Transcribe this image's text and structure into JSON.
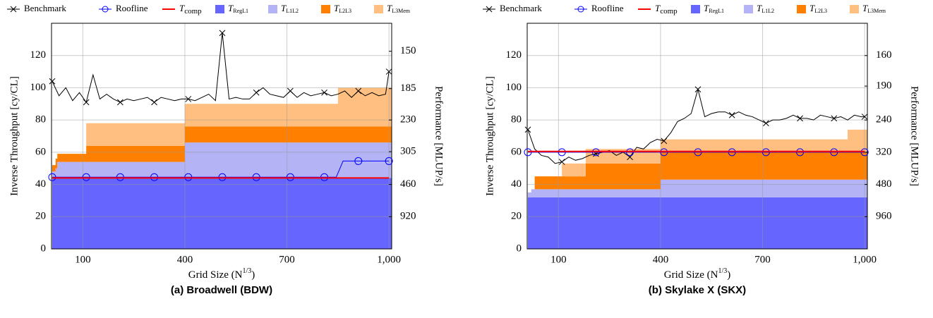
{
  "chart_data": [
    {
      "type": "line",
      "caption": "(a) Broadwell (BDW)",
      "xlabel": "Grid Size (N1/3)",
      "ylabel": "Inverse Throughput [cy/CL]",
      "y2label": "Performance [MLUP/s]",
      "xlim": [
        8,
        1008
      ],
      "xticks": [
        100,
        400,
        700,
        {
          "value": 1000,
          "label": "1,000"
        }
      ],
      "ylim": [
        0,
        140
      ],
      "yticks": [
        0,
        20,
        40,
        60,
        80,
        100,
        120
      ],
      "y2scale": "reciprocal",
      "y2lim": [
        null,
        131.4
      ],
      "y2ticks": [
        920,
        460,
        305,
        230,
        185,
        150
      ],
      "grid": true,
      "series": [
        {
          "name": "Benchmark",
          "kind": "line",
          "marker": "x",
          "color": "#000000",
          "x": [
            10,
            30,
            50,
            70,
            90,
            110,
            130,
            150,
            170,
            190,
            210,
            230,
            250,
            270,
            290,
            310,
            330,
            350,
            370,
            390,
            410,
            430,
            450,
            470,
            490,
            510,
            530,
            550,
            570,
            590,
            610,
            630,
            650,
            670,
            690,
            710,
            730,
            750,
            770,
            790,
            810,
            830,
            850,
            870,
            890,
            910,
            930,
            950,
            970,
            990,
            1000
          ],
          "values": [
            104,
            95,
            100,
            92,
            97,
            91,
            108,
            93,
            96,
            93,
            91,
            93,
            92,
            93,
            94,
            91,
            94,
            93,
            92,
            93,
            93,
            92,
            94,
            96,
            92,
            134,
            93,
            94,
            93,
            93,
            97,
            100,
            96,
            95,
            94,
            98,
            94,
            97,
            95,
            96,
            97,
            95,
            96,
            98,
            94,
            98,
            95,
            97,
            95,
            96,
            110
          ]
        },
        {
          "name": "Roofline",
          "kind": "line",
          "marker": "circle",
          "color": "#0000ff",
          "x": [
            10,
            110,
            210,
            310,
            410,
            510,
            610,
            710,
            810,
            845,
            865,
            910,
            1000
          ],
          "values": [
            44.5,
            44.5,
            44.5,
            44.5,
            44.5,
            44.5,
            44.5,
            44.5,
            44.5,
            44.5,
            54.5,
            54.5,
            54.5
          ]
        },
        {
          "name": "Tcomp",
          "kind": "line",
          "color": "#ff0000",
          "x": [
            10,
            1000
          ],
          "values": [
            44,
            44
          ]
        },
        {
          "name": "TRegL1",
          "kind": "area",
          "color": "#6666ff",
          "x": [
            10,
            20,
            25,
            110,
            400,
            850,
            1000
          ],
          "values": [
            44,
            44,
            44,
            44,
            44,
            44,
            44
          ]
        },
        {
          "name": "TL1L2",
          "kind": "area",
          "color": "#b3b3f5",
          "x": [
            10,
            20,
            25,
            110,
            400,
            850,
            1000
          ],
          "values": [
            4,
            6,
            10,
            10,
            22,
            22,
            22
          ]
        },
        {
          "name": "TL2L3",
          "kind": "area",
          "color": "#ff8000",
          "x": [
            10,
            20,
            25,
            110,
            400,
            850,
            1000
          ],
          "values": [
            4,
            6,
            5,
            10,
            10,
            10,
            10
          ]
        },
        {
          "name": "TL3Mem",
          "kind": "area",
          "color": "#ffbf80",
          "x": [
            10,
            20,
            25,
            110,
            400,
            850,
            1000
          ],
          "values": [
            0,
            0,
            0,
            14,
            14,
            24,
            24
          ]
        }
      ]
    },
    {
      "type": "line",
      "caption": "(b) Skylake X (SKX)",
      "xlabel": "Grid Size (N1/3)",
      "ylabel": "Inverse Throughput [cy/CL]",
      "y2label": "Performance [MLUP/s]",
      "xlim": [
        8,
        1008
      ],
      "xticks": [
        100,
        400,
        700,
        {
          "value": 1000,
          "label": "1,000"
        }
      ],
      "ylim": [
        0,
        140
      ],
      "yticks": [
        0,
        20,
        40,
        60,
        80,
        100,
        120
      ],
      "y2scale": "reciprocal",
      "y2lim": [
        null,
        137.1
      ],
      "y2ticks": [
        960,
        480,
        320,
        240,
        190,
        160
      ],
      "grid": true,
      "series": [
        {
          "name": "Benchmark",
          "kind": "line",
          "marker": "x",
          "color": "#000000",
          "x": [
            10,
            30,
            50,
            70,
            90,
            110,
            130,
            150,
            170,
            190,
            210,
            230,
            250,
            270,
            290,
            310,
            330,
            350,
            370,
            390,
            410,
            430,
            450,
            470,
            490,
            510,
            530,
            550,
            570,
            590,
            610,
            630,
            650,
            670,
            690,
            710,
            730,
            750,
            770,
            790,
            810,
            830,
            850,
            870,
            890,
            910,
            930,
            950,
            970,
            990,
            1000
          ],
          "values": [
            74,
            62,
            58,
            57,
            53,
            54,
            57,
            55,
            56,
            58,
            59,
            60,
            61,
            58,
            60,
            57,
            63,
            62,
            66,
            68,
            67,
            72,
            79,
            81,
            84,
            99,
            82,
            84,
            85,
            85,
            83,
            85,
            83,
            82,
            80,
            78,
            80,
            80,
            81,
            83,
            81,
            81,
            80,
            83,
            82,
            81,
            82,
            80,
            83,
            82,
            82
          ]
        },
        {
          "name": "Roofline",
          "kind": "line",
          "marker": "circle",
          "color": "#0000ff",
          "x": [
            10,
            110,
            210,
            310,
            410,
            510,
            610,
            710,
            810,
            910,
            1000
          ],
          "values": [
            60,
            60,
            60,
            60,
            60,
            60,
            60,
            60,
            60,
            60,
            60
          ]
        },
        {
          "name": "Tcomp",
          "kind": "line",
          "color": "#ff0000",
          "x": [
            10,
            1000
          ],
          "values": [
            60.5,
            60.5
          ]
        },
        {
          "name": "TRegL1",
          "kind": "area",
          "color": "#6666ff",
          "x": [
            10,
            20,
            30,
            110,
            180,
            400,
            950,
            1000
          ],
          "values": [
            32,
            32,
            32,
            32,
            32,
            32,
            32,
            32
          ]
        },
        {
          "name": "TL1L2",
          "kind": "area",
          "color": "#b3b3f5",
          "x": [
            10,
            20,
            30,
            110,
            180,
            400,
            950,
            1000
          ],
          "values": [
            3,
            5,
            5,
            5,
            5,
            11,
            11,
            11
          ]
        },
        {
          "name": "TL2L3",
          "kind": "area",
          "color": "#ff8000",
          "x": [
            10,
            20,
            30,
            110,
            180,
            400,
            950,
            1000
          ],
          "values": [
            0,
            0,
            8,
            8,
            16,
            17,
            17,
            17
          ]
        },
        {
          "name": "TL3Mem",
          "kind": "area",
          "color": "#ffbf80",
          "x": [
            10,
            20,
            30,
            110,
            180,
            400,
            950,
            1000
          ],
          "values": [
            0,
            0,
            0,
            8,
            9,
            8,
            14,
            14
          ]
        }
      ]
    }
  ]
}
